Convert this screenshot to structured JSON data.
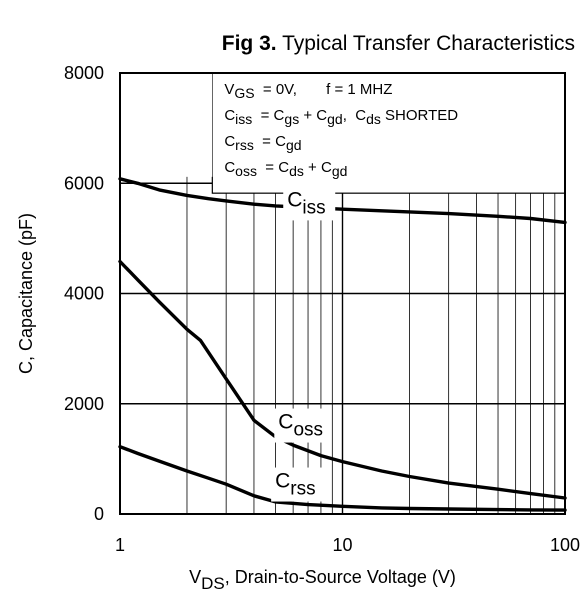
{
  "chart_data": {
    "type": "line",
    "title_prefix": "Fig 3.",
    "title": "Typical Transfer Characteristics",
    "ylabel": "C, Capacitance (pF)",
    "xlabel": {
      "main": "V",
      "sub": "DS",
      "rest": ", Drain-to-Source Voltage (V)"
    },
    "xscale": "log",
    "xlim": [
      1,
      100
    ],
    "ylim": [
      0,
      8000
    ],
    "grid": true,
    "xticks": [
      {
        "value": 1,
        "label": "1"
      },
      {
        "value": 10,
        "label": "10"
      },
      {
        "value": 100,
        "label": "100"
      }
    ],
    "yticks": [
      {
        "value": 0,
        "label": "0"
      },
      {
        "value": 2000,
        "label": "2000"
      },
      {
        "value": 4000,
        "label": "4000"
      },
      {
        "value": 6000,
        "label": "6000"
      },
      {
        "value": 8000,
        "label": "8000"
      }
    ],
    "legend_box": [
      [
        {
          "t": "V"
        },
        {
          "t": "GS",
          "sub": true
        },
        {
          "t": "  = 0V,       f = 1 MHZ"
        }
      ],
      [
        {
          "t": "C"
        },
        {
          "t": "iss",
          "sub": true
        },
        {
          "t": "  = C"
        },
        {
          "t": "gs",
          "sub": true
        },
        {
          "t": " + C"
        },
        {
          "t": "gd",
          "sub": true
        },
        {
          "t": ",  C"
        },
        {
          "t": "ds",
          "sub": true
        },
        {
          "t": " SHORTED"
        }
      ],
      [
        {
          "t": "C"
        },
        {
          "t": "rss",
          "sub": true
        },
        {
          "t": "  = C"
        },
        {
          "t": "gd",
          "sub": true
        }
      ],
      [
        {
          "t": "C"
        },
        {
          "t": "oss",
          "sub": true
        },
        {
          "t": "  = C"
        },
        {
          "t": "ds",
          "sub": true
        },
        {
          "t": " + C"
        },
        {
          "t": "gd",
          "sub": true
        }
      ]
    ],
    "series": [
      {
        "name": "Ciss",
        "label_main": "C",
        "label_sub": "iss",
        "label_at": [
          6.8,
          5580
        ],
        "x": [
          1,
          1.2,
          1.5,
          2,
          2.5,
          3,
          4,
          5,
          7,
          10,
          15,
          20,
          30,
          50,
          70,
          100
        ],
        "y": [
          6080,
          6000,
          5880,
          5780,
          5720,
          5680,
          5620,
          5590,
          5560,
          5530,
          5500,
          5480,
          5450,
          5400,
          5360,
          5290
        ]
      },
      {
        "name": "Coss",
        "label_main": "C",
        "label_sub": "oss",
        "label_at": [
          6.2,
          1550
        ],
        "x": [
          1,
          1.2,
          1.5,
          2,
          2.3,
          3,
          4,
          5,
          6,
          8,
          10,
          15,
          20,
          30,
          50,
          70,
          100
        ],
        "y": [
          4580,
          4250,
          3850,
          3350,
          3150,
          2450,
          1700,
          1400,
          1250,
          1060,
          950,
          780,
          680,
          560,
          450,
          370,
          290
        ]
      },
      {
        "name": "Crss",
        "label_main": "C",
        "label_sub": "rss",
        "label_at": [
          6.0,
          480
        ],
        "x": [
          1,
          1.2,
          1.5,
          2,
          2.5,
          3,
          4,
          5,
          7,
          10,
          15,
          20,
          30,
          50,
          70,
          100
        ],
        "y": [
          1220,
          1100,
          960,
          780,
          650,
          540,
          330,
          220,
          170,
          140,
          110,
          100,
          90,
          80,
          75,
          70
        ]
      }
    ]
  }
}
